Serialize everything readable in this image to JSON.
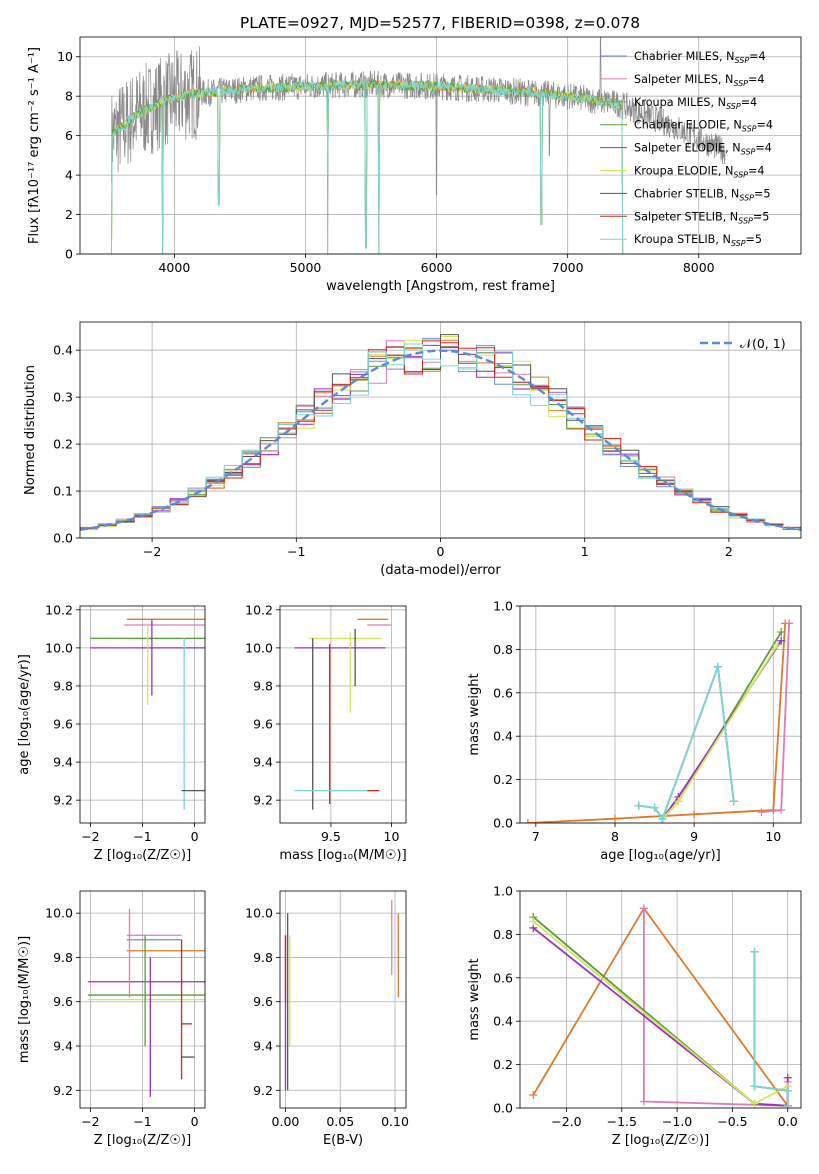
{
  "colors": {
    "chabrier_miles": "#6b8fd6",
    "salpeter_miles": "#e07bb9",
    "kroupa_miles": "#e07a2c",
    "chabrier_elodie": "#5c9e3c",
    "salpeter_elodie": "#9a2fc2",
    "kroupa_elodie": "#d4e65a",
    "chabrier_stelib": "#555555",
    "salpeter_stelib": "#cc2a1f",
    "kroupa_stelib": "#7fd6d6",
    "gaussian": "#5b8ad6"
  },
  "chart_data": [
    {
      "id": "spectrum",
      "type": "line",
      "title": "PLATE=0927, MJD=52577, FIBERID=0398, z=0.078",
      "xlabel": "wavelength [Angstrom, rest frame]",
      "ylabel": "Flux [fλ10⁻¹⁷ erg cm⁻² s⁻¹ A⁻¹]",
      "xlim": [
        3280,
        8780
      ],
      "ylim": [
        0,
        11
      ],
      "xticks": [
        4000,
        5000,
        6000,
        7000,
        8000
      ],
      "yticks": [
        0,
        2,
        4,
        6,
        8,
        10
      ],
      "legend_position": "top-right",
      "legend": [
        {
          "name": "Chabrier MILES, N",
          "sub": "SSP",
          "suffix": "=4",
          "color_key": "chabrier_miles"
        },
        {
          "name": "Salpeter MILES, N",
          "sub": "SSP",
          "suffix": "=4",
          "color_key": "salpeter_miles"
        },
        {
          "name": "Kroupa MILES, N",
          "sub": "SSP",
          "suffix": "=4",
          "color_key": "kroupa_miles"
        },
        {
          "name": "Chabrier ELODIE, N",
          "sub": "SSP",
          "suffix": "=4",
          "color_key": "chabrier_elodie"
        },
        {
          "name": "Salpeter ELODIE, N",
          "sub": "SSP",
          "suffix": "=4",
          "color_key": "salpeter_elodie"
        },
        {
          "name": "Kroupa ELODIE, N",
          "sub": "SSP",
          "suffix": "=4",
          "color_key": "kroupa_elodie"
        },
        {
          "name": "Chabrier STELIB, N",
          "sub": "SSP",
          "suffix": "=5",
          "color_key": "chabrier_stelib"
        },
        {
          "name": "Salpeter STELIB, N",
          "sub": "SSP",
          "suffix": "=5",
          "color_key": "salpeter_stelib"
        },
        {
          "name": "Kroupa STELIB, N",
          "sub": "SSP",
          "suffix": "=5",
          "color_key": "kroupa_stelib"
        }
      ],
      "data_range": [
        3520,
        8200
      ],
      "model_range": [
        3520,
        7420
      ],
      "continuum": [
        [
          3520,
          6.0
        ],
        [
          3700,
          7.0
        ],
        [
          3900,
          7.7
        ],
        [
          4100,
          8.1
        ],
        [
          4300,
          8.2
        ],
        [
          4600,
          8.4
        ],
        [
          5000,
          8.5
        ],
        [
          5500,
          8.6
        ],
        [
          6000,
          8.5
        ],
        [
          6500,
          8.3
        ],
        [
          7000,
          8.0
        ],
        [
          7400,
          7.6
        ],
        [
          7800,
          6.5
        ],
        [
          8200,
          5.2
        ]
      ],
      "model_drops": [
        {
          "x": 3520,
          "y": 0.0
        },
        {
          "x": 3910,
          "y": 0.0
        },
        {
          "x": 4340,
          "y": 2.5
        },
        {
          "x": 5170,
          "y": 4.0
        },
        {
          "x": 5460,
          "y": 0.3
        },
        {
          "x": 5560,
          "y": 0.0
        },
        {
          "x": 6800,
          "y": 1.5
        },
        {
          "x": 7420,
          "y": 0.0
        }
      ],
      "data_spikes": [
        {
          "x": 5170,
          "y": 0.0
        },
        {
          "x": 6000,
          "y": 3.0
        },
        {
          "x": 6860,
          "y": 5.0
        },
        {
          "x": 7250,
          "y": 11.0
        }
      ]
    },
    {
      "id": "residuals",
      "type": "histogram",
      "xlabel": "(data-model)/error",
      "ylabel": "Normed distribution",
      "xlim": [
        -2.5,
        2.5
      ],
      "ylim": [
        0,
        0.46
      ],
      "xticks": [
        -2,
        -1,
        0,
        1,
        2
      ],
      "yticks": [
        0.0,
        0.1,
        0.2,
        0.3,
        0.4
      ],
      "legend_position": "top-right",
      "gaussian_label": "𝒩(0, 1)",
      "bins": 40
    },
    {
      "id": "age_vs_Z",
      "type": "errorbar",
      "xlabel": "Z [log₁₀(Z/Z☉)]",
      "ylabel": "age  [log₁₀(age/yr)]",
      "xlim": [
        -2.2,
        0.2
      ],
      "ylim": [
        9.08,
        10.22
      ],
      "xticks": [
        -2,
        -1,
        0
      ],
      "yticks": [
        9.2,
        9.4,
        9.6,
        9.8,
        10.0,
        10.2
      ],
      "points": [
        {
          "x": -0.84,
          "y": 10.05,
          "xerr": [
            1.18,
            1.04
          ],
          "yerr": [
            0.0,
            0.0
          ],
          "color_key": "kroupa_elodie"
        },
        {
          "x": -0.8,
          "y": 10.15,
          "xerr": [
            0.5,
            1.0
          ],
          "yerr": [
            0.0,
            0.0
          ],
          "color_key": "kroupa_miles"
        },
        {
          "x": -0.85,
          "y": 10.12,
          "xerr": [
            0.5,
            1.05
          ],
          "yerr": [
            0.0,
            0.0
          ],
          "color_key": "salpeter_miles"
        },
        {
          "x": -0.8,
          "y": 10.05,
          "xerr": [
            1.2,
            1.0
          ],
          "yerr": [
            0.0,
            0.0
          ],
          "color_key": "chabrier_elodie"
        },
        {
          "x": -0.8,
          "y": 10.0,
          "xerr": [
            1.2,
            1.0
          ],
          "yerr": [
            0.0,
            0.0
          ],
          "color_key": "salpeter_elodie"
        },
        {
          "x": -1.25,
          "y": 10.15,
          "xerr": [
            0.0,
            0.0
          ],
          "yerr": [
            0.0,
            0.0
          ],
          "color_key": "salpeter_miles"
        },
        {
          "x": -0.9,
          "y": 9.92,
          "xerr": [
            0.0,
            0.0
          ],
          "yerr": [
            0.22,
            0.2
          ],
          "color_key": "kroupa_elodie"
        },
        {
          "x": -0.82,
          "y": 9.95,
          "xerr": [
            0.0,
            0.0
          ],
          "yerr": [
            0.2,
            0.2
          ],
          "color_key": "salpeter_elodie"
        },
        {
          "x": -0.2,
          "y": 9.6,
          "xerr": [
            0.0,
            0.0
          ],
          "yerr": [
            0.45,
            0.45
          ],
          "color_key": "kroupa_stelib"
        },
        {
          "x": -0.05,
          "y": 9.25,
          "xerr": [
            0.2,
            0.25
          ],
          "yerr": [
            0.0,
            0.0
          ],
          "color_key": "chabrier_stelib"
        }
      ]
    },
    {
      "id": "age_vs_mass",
      "type": "errorbar",
      "xlabel": "mass [log₁₀(M/M☉)]",
      "xlim": [
        9.08,
        10.12
      ],
      "ylim": [
        9.08,
        10.22
      ],
      "xticks": [
        9.5,
        10.0
      ],
      "yticks": [
        9.2,
        9.4,
        9.6,
        9.8,
        10.0,
        10.2
      ],
      "points": [
        {
          "x": 9.72,
          "y": 10.15,
          "xerr": [
            0.0,
            0.25
          ],
          "yerr": [
            0.0,
            0.0
          ],
          "color_key": "kroupa_miles"
        },
        {
          "x": 9.85,
          "y": 10.12,
          "xerr": [
            0.05,
            0.15
          ],
          "yerr": [
            0.0,
            0.0
          ],
          "color_key": "salpeter_miles"
        },
        {
          "x": 9.62,
          "y": 10.05,
          "xerr": [
            0.3,
            0.3
          ],
          "yerr": [
            0.0,
            0.0
          ],
          "color_key": "kroupa_elodie"
        },
        {
          "x": 9.6,
          "y": 10.0,
          "xerr": [
            0.4,
            0.35
          ],
          "yerr": [
            0.0,
            0.0
          ],
          "color_key": "salpeter_elodie"
        },
        {
          "x": 9.66,
          "y": 9.88,
          "xerr": [
            0.0,
            0.0
          ],
          "yerr": [
            0.22,
            0.2
          ],
          "color_key": "kroupa_elodie"
        },
        {
          "x": 9.7,
          "y": 9.95,
          "xerr": [
            0.0,
            0.0
          ],
          "yerr": [
            0.15,
            0.15
          ],
          "color_key": "chabrier_stelib"
        },
        {
          "x": 9.49,
          "y": 9.6,
          "xerr": [
            0.0,
            0.0
          ],
          "yerr": [
            0.42,
            0.42
          ],
          "color_key": "salpeter_stelib"
        },
        {
          "x": 9.35,
          "y": 9.6,
          "xerr": [
            0.0,
            0.0
          ],
          "yerr": [
            0.45,
            0.45
          ],
          "color_key": "chabrier_stelib"
        },
        {
          "x": 9.5,
          "y": 9.25,
          "xerr": [
            0.3,
            0.35
          ],
          "yerr": [
            0.0,
            0.0
          ],
          "color_key": "kroupa_stelib"
        },
        {
          "x": 9.8,
          "y": 9.25,
          "xerr": [
            0.0,
            0.1
          ],
          "yerr": [
            0.0,
            0.0
          ],
          "color_key": "salpeter_stelib"
        }
      ]
    },
    {
      "id": "mass_weight_vs_age",
      "type": "line",
      "xlabel": "age  [log₁₀(age/yr)]",
      "ylabel": "mass weight",
      "xlim": [
        6.8,
        10.35
      ],
      "ylim": [
        0,
        1.0
      ],
      "xticks": [
        7,
        8,
        9,
        10
      ],
      "yticks": [
        0.0,
        0.2,
        0.4,
        0.6,
        0.8,
        1.0
      ],
      "series": [
        {
          "color_key": "kroupa_miles",
          "x": [
            6.9,
            8.0,
            9.0,
            10.0,
            10.15
          ],
          "y": [
            0.0,
            0.02,
            0.04,
            0.06,
            0.92
          ]
        },
        {
          "color_key": "salpeter_miles",
          "x": [
            9.85,
            10.1,
            10.2
          ],
          "y": [
            0.05,
            0.06,
            0.92
          ]
        },
        {
          "color_key": "chabrier_elodie",
          "x": [
            8.6,
            8.8,
            10.1
          ],
          "y": [
            0.02,
            0.1,
            0.88
          ]
        },
        {
          "color_key": "salpeter_elodie",
          "x": [
            8.6,
            8.8,
            10.1
          ],
          "y": [
            0.02,
            0.12,
            0.84
          ]
        },
        {
          "color_key": "kroupa_elodie",
          "x": [
            8.6,
            8.8,
            10.05
          ],
          "y": [
            0.02,
            0.1,
            0.82
          ]
        },
        {
          "color_key": "chabrier_stelib",
          "x": [
            8.3,
            8.5,
            8.6,
            9.3,
            9.5
          ],
          "y": [
            0.08,
            0.07,
            0.02,
            0.72,
            0.1
          ]
        },
        {
          "color_key": "kroupa_stelib",
          "x": [
            8.3,
            8.5,
            8.6,
            9.3,
            9.5
          ],
          "y": [
            0.08,
            0.07,
            0.02,
            0.72,
            0.1
          ]
        }
      ]
    },
    {
      "id": "mass_vs_Z",
      "type": "errorbar",
      "xlabel": "Z [log₁₀(Z/Z☉)]",
      "ylabel": "mass [log₁₀(M/M☉)]",
      "xlim": [
        -2.2,
        0.2
      ],
      "ylim": [
        9.12,
        10.1
      ],
      "xticks": [
        -2,
        -1,
        0
      ],
      "yticks": [
        9.2,
        9.4,
        9.6,
        9.8,
        10.0
      ],
      "points": [
        {
          "x": -0.8,
          "y": 9.9,
          "xerr": [
            0.5,
            0.55
          ],
          "yerr": [
            0.0,
            0.0
          ],
          "color_key": "salpeter_miles"
        },
        {
          "x": -0.8,
          "y": 9.88,
          "xerr": [
            0.5,
            0.55
          ],
          "yerr": [
            0.0,
            0.0
          ],
          "color_key": "chabrier_miles"
        },
        {
          "x": -0.8,
          "y": 9.83,
          "xerr": [
            0.5,
            1.0
          ],
          "yerr": [
            0.0,
            0.0
          ],
          "color_key": "kroupa_miles"
        },
        {
          "x": -0.85,
          "y": 9.69,
          "xerr": [
            1.2,
            1.05
          ],
          "yerr": [
            0.0,
            0.0
          ],
          "color_key": "salpeter_elodie"
        },
        {
          "x": -0.85,
          "y": 9.63,
          "xerr": [
            1.2,
            1.05
          ],
          "yerr": [
            0.0,
            0.0
          ],
          "color_key": "chabrier_elodie"
        },
        {
          "x": -0.85,
          "y": 9.61,
          "xerr": [
            1.2,
            1.05
          ],
          "yerr": [
            0.0,
            0.0
          ],
          "color_key": "kroupa_elodie"
        },
        {
          "x": -1.25,
          "y": 9.82,
          "xerr": [
            0.0,
            0.0
          ],
          "yerr": [
            0.2,
            0.2
          ],
          "color_key": "salpeter_miles"
        },
        {
          "x": -0.95,
          "y": 9.7,
          "xerr": [
            0.0,
            0.0
          ],
          "yerr": [
            0.3,
            0.2
          ],
          "color_key": "chabrier_elodie"
        },
        {
          "x": -0.85,
          "y": 9.45,
          "xerr": [
            0.0,
            0.0
          ],
          "yerr": [
            0.28,
            0.35
          ],
          "color_key": "salpeter_elodie"
        },
        {
          "x": -0.05,
          "y": 9.5,
          "xerr": [
            0.2,
            0.0
          ],
          "yerr": [
            0.0,
            0.0
          ],
          "color_key": "salpeter_stelib"
        },
        {
          "x": -0.25,
          "y": 9.6,
          "xerr": [
            0.0,
            0.0
          ],
          "yerr": [
            0.35,
            0.28
          ],
          "color_key": "salpeter_stelib"
        },
        {
          "x": -0.05,
          "y": 9.35,
          "xerr": [
            0.2,
            0.05
          ],
          "yerr": [
            0.0,
            0.0
          ],
          "color_key": "chabrier_stelib"
        }
      ]
    },
    {
      "id": "mass_vs_ebv",
      "type": "errorbar",
      "xlabel": "E(B-V)",
      "xlim": [
        -0.005,
        0.11
      ],
      "ylim": [
        9.12,
        10.1
      ],
      "xticks": [
        0.0,
        0.05,
        0.1
      ],
      "xtick_labels": [
        "0.00",
        "0.05",
        "0.10"
      ],
      "yticks": [
        9.2,
        9.4,
        9.6,
        9.8,
        10.0
      ],
      "points": [
        {
          "x": 0.0,
          "y": 9.45,
          "xerr": [
            0.0,
            0.0
          ],
          "yerr": [
            0.25,
            0.45
          ],
          "color_key": "salpeter_elodie"
        },
        {
          "x": 0.002,
          "y": 9.55,
          "xerr": [
            0.0,
            0.0
          ],
          "yerr": [
            0.35,
            0.45
          ],
          "color_key": "chabrier_stelib"
        },
        {
          "x": 0.004,
          "y": 9.65,
          "xerr": [
            0.0,
            0.0
          ],
          "yerr": [
            0.25,
            0.25
          ],
          "color_key": "kroupa_elodie"
        },
        {
          "x": 0.0,
          "y": 9.7,
          "xerr": [
            0.0,
            0.0
          ],
          "yerr": [
            0.1,
            0.2
          ],
          "color_key": "salpeter_stelib"
        },
        {
          "x": 0.097,
          "y": 9.9,
          "xerr": [
            0.0,
            0.0
          ],
          "yerr": [
            0.18,
            0.16
          ],
          "color_key": "salpeter_miles"
        },
        {
          "x": 0.103,
          "y": 9.8,
          "xerr": [
            0.0,
            0.0
          ],
          "yerr": [
            0.18,
            0.2
          ],
          "color_key": "kroupa_miles"
        }
      ]
    },
    {
      "id": "mass_weight_vs_Z",
      "type": "line",
      "xlabel": "Z [log₁₀(Z/Z☉)]",
      "ylabel": "mass weight",
      "xlim": [
        -2.42,
        0.12
      ],
      "ylim": [
        0,
        1.0
      ],
      "xticks": [
        -2.0,
        -1.5,
        -1.0,
        -0.5,
        0.0
      ],
      "xtick_labels": [
        "−2.0",
        "−1.5",
        "−1.0",
        "−0.5",
        "0.0"
      ],
      "yticks": [
        0.0,
        0.2,
        0.4,
        0.6,
        0.8,
        1.0
      ],
      "series": [
        {
          "color_key": "kroupa_miles",
          "x": [
            -2.3,
            -1.3,
            0.0
          ],
          "y": [
            0.06,
            0.92,
            0.01
          ]
        },
        {
          "color_key": "salpeter_miles",
          "x": [
            -1.3,
            -1.3,
            0.0,
            0.0
          ],
          "y": [
            0.92,
            0.03,
            0.01,
            0.12
          ]
        },
        {
          "color_key": "chabrier_elodie",
          "x": [
            -2.3,
            -0.3,
            0.0
          ],
          "y": [
            0.88,
            0.02,
            0.01
          ]
        },
        {
          "color_key": "salpeter_elodie",
          "x": [
            -2.3,
            -0.3,
            0.0,
            0.0
          ],
          "y": [
            0.83,
            0.02,
            0.01,
            0.14
          ]
        },
        {
          "color_key": "kroupa_elodie",
          "x": [
            -2.3,
            -0.3,
            0.0
          ],
          "y": [
            0.86,
            0.02,
            0.1
          ]
        },
        {
          "color_key": "chabrier_stelib",
          "x": [
            -0.3,
            -0.3,
            -0.3,
            0.0,
            0.0
          ],
          "y": [
            0.72,
            0.1,
            0.1,
            0.08,
            0.01
          ]
        },
        {
          "color_key": "kroupa_stelib",
          "x": [
            -0.3,
            -0.3,
            -0.3,
            0.0,
            0.0
          ],
          "y": [
            0.72,
            0.1,
            0.1,
            0.08,
            0.01
          ]
        }
      ]
    }
  ]
}
